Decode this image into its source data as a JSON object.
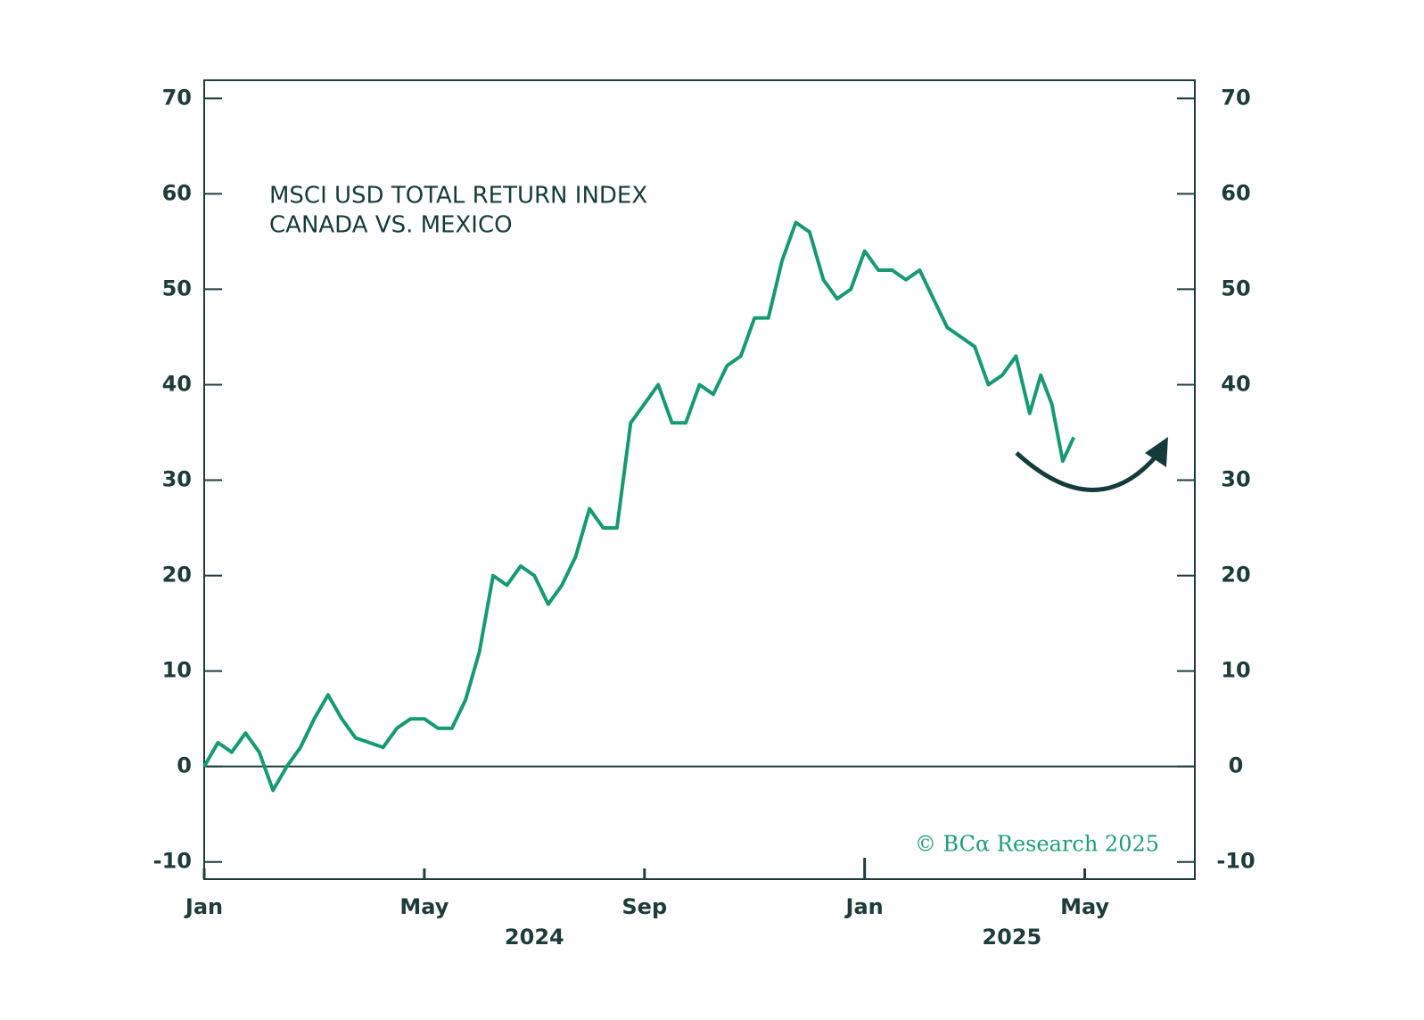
{
  "chart_data": {
    "type": "line",
    "title_lines": [
      "MSCI USD TOTAL RETURN INDEX",
      "CANADA VS. MEXICO"
    ],
    "source": "© BCα Research 2025",
    "x": [
      "2024-01",
      "2024-01",
      "2024-01",
      "2024-01",
      "2024-02",
      "2024-02",
      "2024-02",
      "2024-02",
      "2024-03",
      "2024-03",
      "2024-03",
      "2024-03",
      "2024-04",
      "2024-04",
      "2024-04",
      "2024-04",
      "2024-05",
      "2024-05",
      "2024-05",
      "2024-05",
      "2024-06",
      "2024-06",
      "2024-06",
      "2024-06",
      "2024-07",
      "2024-07",
      "2024-07",
      "2024-07",
      "2024-08",
      "2024-08",
      "2024-08",
      "2024-08",
      "2024-09",
      "2024-09",
      "2024-09",
      "2024-09",
      "2024-10",
      "2024-10",
      "2024-10",
      "2024-10",
      "2024-11",
      "2024-11",
      "2024-11",
      "2024-11",
      "2024-12",
      "2024-12",
      "2024-12",
      "2024-12",
      "2025-01",
      "2025-01",
      "2025-01",
      "2025-01",
      "2025-02",
      "2025-02",
      "2025-02",
      "2025-02",
      "2025-03",
      "2025-03",
      "2025-03",
      "2025-03",
      "2025-04",
      "2025-04",
      "2025-04",
      "2025-04",
      "2025-04"
    ],
    "series": [
      {
        "color": "#159a74",
        "values": [
          0,
          2.5,
          1.5,
          3.5,
          1.5,
          -2.5,
          0,
          2,
          5,
          7.5,
          5,
          3,
          2.5,
          2,
          4,
          5,
          5,
          4,
          4,
          7,
          12,
          20,
          19,
          21,
          20,
          17,
          19,
          22,
          27,
          25,
          25,
          36,
          38,
          40,
          36,
          36,
          40,
          39,
          42,
          43,
          47,
          47,
          53,
          57,
          56,
          51,
          49,
          50,
          54,
          52,
          52,
          51,
          52,
          49,
          46,
          45,
          44,
          40,
          41,
          43,
          37,
          41,
          38,
          32,
          34.5
        ]
      }
    ],
    "xlim": [
      "2024-01",
      "2025-07"
    ],
    "xticks": [
      {
        "value": "2024-01",
        "label": "Jan"
      },
      {
        "value": "2024-05",
        "label": "May"
      },
      {
        "value": "2024-09",
        "label": "Sep"
      },
      {
        "value": "2025-01",
        "label": "Jan"
      },
      {
        "value": "2025-05",
        "label": "May"
      }
    ],
    "year_labels": [
      "2024",
      "2025"
    ],
    "ylim": [
      -11.8,
      71.9
    ],
    "yticks": [
      -10,
      0,
      10,
      20,
      30,
      40,
      50,
      60,
      70
    ],
    "reference_line": 0
  }
}
